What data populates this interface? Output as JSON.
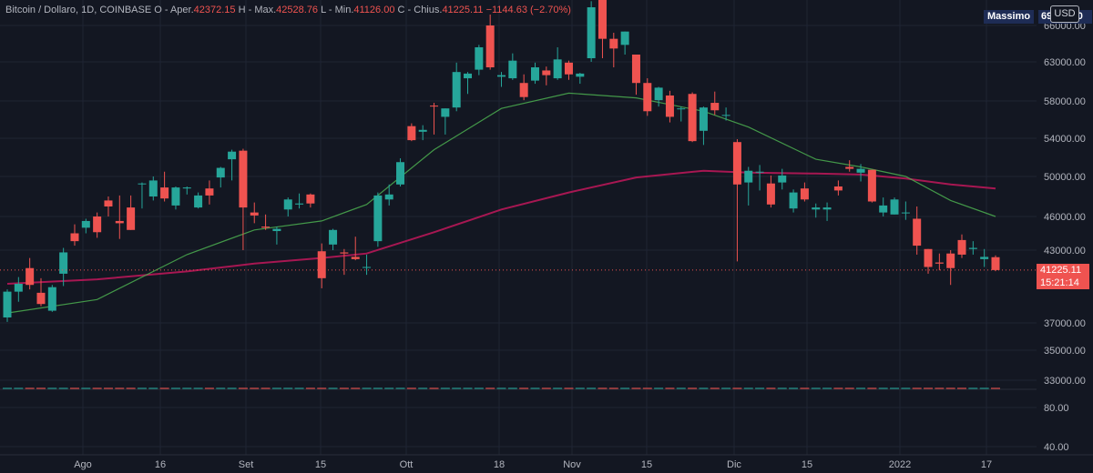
{
  "header": {
    "symbol": "Bitcoin / Dollaro, 1D, COINBASE",
    "open_label": "O - Aper.",
    "open": "42372.15",
    "high_label": "H - Max.",
    "high": "42528.76",
    "low_label": "L - Min.",
    "low": "41126.00",
    "close_label": "C - Chius.",
    "close": "41225.11",
    "change": "−1144.63 (−2.70%)"
  },
  "currency_button": "USD",
  "max_marker": {
    "label": "Massimo",
    "value": "69000.00"
  },
  "last_price": {
    "value": "41225.11",
    "countdown": "15:21:14"
  },
  "colors": {
    "background": "#131722",
    "up": "#26a69a",
    "down": "#ef5350",
    "ma_short": "#4caf50",
    "ma_long": "#c2185b"
  },
  "chart_data": {
    "type": "candlestick",
    "price_ticks": [
      "66000.00",
      "63000.00",
      "58000.00",
      "54000.00",
      "50000.00",
      "46000.00",
      "43000.00",
      "37000.00",
      "35000.00",
      "33000.00",
      "80.00",
      "40.00"
    ],
    "x_labels": [
      "Ago",
      "16",
      "Set",
      "15",
      "Ott",
      "18",
      "Nov",
      "15",
      "Dic",
      "15",
      "2022",
      "17"
    ],
    "candles": [
      {
        "date": "2021-07-27",
        "o": 37000,
        "h": 39500,
        "l": 36600,
        "c": 39300
      },
      {
        "date": "2021-07-29",
        "o": 39300,
        "h": 40600,
        "l": 38400,
        "c": 40000
      },
      {
        "date": "2021-07-31",
        "o": 41400,
        "h": 42300,
        "l": 39500,
        "c": 39900
      },
      {
        "date": "2021-08-02",
        "o": 39200,
        "h": 40500,
        "l": 38000,
        "c": 38200
      },
      {
        "date": "2021-08-04",
        "o": 37600,
        "h": 39900,
        "l": 37500,
        "c": 39700
      },
      {
        "date": "2021-08-06",
        "o": 40900,
        "h": 43200,
        "l": 39800,
        "c": 42800
      },
      {
        "date": "2021-08-08",
        "o": 44500,
        "h": 45300,
        "l": 43400,
        "c": 43800
      },
      {
        "date": "2021-08-10",
        "o": 45000,
        "h": 45800,
        "l": 44500,
        "c": 45600
      },
      {
        "date": "2021-08-12",
        "o": 46000,
        "h": 46400,
        "l": 44100,
        "c": 44600
      },
      {
        "date": "2021-08-14",
        "o": 47600,
        "h": 48000,
        "l": 46000,
        "c": 47000
      },
      {
        "date": "2021-08-16",
        "o": 45600,
        "h": 48100,
        "l": 44000,
        "c": 45400
      },
      {
        "date": "2021-08-18",
        "o": 46900,
        "h": 48100,
        "l": 44800,
        "c": 44800
      },
      {
        "date": "2021-08-20",
        "o": 49300,
        "h": 49400,
        "l": 46800,
        "c": 49300
      },
      {
        "date": "2021-08-22",
        "o": 48000,
        "h": 50000,
        "l": 47600,
        "c": 49600
      },
      {
        "date": "2021-08-24",
        "o": 48900,
        "h": 50500,
        "l": 47500,
        "c": 47800
      },
      {
        "date": "2021-08-26",
        "o": 47100,
        "h": 49000,
        "l": 46700,
        "c": 48900
      },
      {
        "date": "2021-08-28",
        "o": 48800,
        "h": 49000,
        "l": 48200,
        "c": 48900
      },
      {
        "date": "2021-08-30",
        "o": 46900,
        "h": 48400,
        "l": 46800,
        "c": 48100
      },
      {
        "date": "2021-09-01",
        "o": 48800,
        "h": 49600,
        "l": 47200,
        "c": 48100
      },
      {
        "date": "2021-09-03",
        "o": 49900,
        "h": 51000,
        "l": 48900,
        "c": 50900
      },
      {
        "date": "2021-09-05",
        "o": 51800,
        "h": 52800,
        "l": 49600,
        "c": 52600
      },
      {
        "date": "2021-09-07",
        "o": 52700,
        "h": 52900,
        "l": 43000,
        "c": 46900
      },
      {
        "date": "2021-09-09",
        "o": 46400,
        "h": 47400,
        "l": 45400,
        "c": 46100
      },
      {
        "date": "2021-09-11",
        "o": 45100,
        "h": 46200,
        "l": 44800,
        "c": 45000
      },
      {
        "date": "2021-09-13",
        "o": 44700,
        "h": 45100,
        "l": 43500,
        "c": 44900
      },
      {
        "date": "2021-09-15",
        "o": 46700,
        "h": 47900,
        "l": 46000,
        "c": 47700
      },
      {
        "date": "2021-09-17",
        "o": 47200,
        "h": 48300,
        "l": 46800,
        "c": 47300
      },
      {
        "date": "2021-09-19",
        "o": 48200,
        "h": 48300,
        "l": 46900,
        "c": 47300
      },
      {
        "date": "2021-09-21",
        "o": 42900,
        "h": 43600,
        "l": 39600,
        "c": 40500
      },
      {
        "date": "2021-09-23",
        "o": 43500,
        "h": 44900,
        "l": 43000,
        "c": 44800
      },
      {
        "date": "2021-09-25",
        "o": 42800,
        "h": 43100,
        "l": 40800,
        "c": 42700
      },
      {
        "date": "2021-09-27",
        "o": 42400,
        "h": 44200,
        "l": 42100,
        "c": 42200
      },
      {
        "date": "2021-09-29",
        "o": 41500,
        "h": 42600,
        "l": 40800,
        "c": 41500
      },
      {
        "date": "2021-10-01",
        "o": 43800,
        "h": 48400,
        "l": 43300,
        "c": 48100
      },
      {
        "date": "2021-10-03",
        "o": 47700,
        "h": 49200,
        "l": 47100,
        "c": 48200
      },
      {
        "date": "2021-10-05",
        "o": 49200,
        "h": 51900,
        "l": 49000,
        "c": 51500
      },
      {
        "date": "2021-10-07",
        "o": 55300,
        "h": 55600,
        "l": 53700,
        "c": 53800
      },
      {
        "date": "2021-10-09",
        "o": 54700,
        "h": 55400,
        "l": 53800,
        "c": 54900
      },
      {
        "date": "2021-10-11",
        "o": 57500,
        "h": 57800,
        "l": 54400,
        "c": 57400
      },
      {
        "date": "2021-10-13",
        "o": 56300,
        "h": 57200,
        "l": 54400,
        "c": 57200
      },
      {
        "date": "2021-10-15",
        "o": 57300,
        "h": 62900,
        "l": 56900,
        "c": 61700
      },
      {
        "date": "2021-10-17",
        "o": 60900,
        "h": 61700,
        "l": 58900,
        "c": 61500
      },
      {
        "date": "2021-10-19",
        "o": 62000,
        "h": 64400,
        "l": 61300,
        "c": 64200
      },
      {
        "date": "2021-10-21",
        "o": 66000,
        "h": 66900,
        "l": 62000,
        "c": 62300
      },
      {
        "date": "2021-10-23",
        "o": 61100,
        "h": 61700,
        "l": 59800,
        "c": 61300
      },
      {
        "date": "2021-10-25",
        "o": 60900,
        "h": 63700,
        "l": 60700,
        "c": 63100
      },
      {
        "date": "2021-10-27",
        "o": 60300,
        "h": 61400,
        "l": 58100,
        "c": 58500
      },
      {
        "date": "2021-10-29",
        "o": 60600,
        "h": 62900,
        "l": 60200,
        "c": 62300
      },
      {
        "date": "2021-10-31",
        "o": 61900,
        "h": 62400,
        "l": 60000,
        "c": 61300
      },
      {
        "date": "2021-11-02",
        "o": 60900,
        "h": 64200,
        "l": 60700,
        "c": 63200
      },
      {
        "date": "2021-11-04",
        "o": 62900,
        "h": 63100,
        "l": 60700,
        "c": 61400
      },
      {
        "date": "2021-11-06",
        "o": 61100,
        "h": 61600,
        "l": 60200,
        "c": 61500
      },
      {
        "date": "2021-11-08",
        "o": 63300,
        "h": 68000,
        "l": 63000,
        "c": 67500
      },
      {
        "date": "2021-11-10",
        "o": 68600,
        "h": 69000,
        "l": 63300,
        "c": 64900
      },
      {
        "date": "2021-11-12",
        "o": 64900,
        "h": 65400,
        "l": 62300,
        "c": 64100
      },
      {
        "date": "2021-11-14",
        "o": 64400,
        "h": 65500,
        "l": 63600,
        "c": 65500
      },
      {
        "date": "2021-11-16",
        "o": 63600,
        "h": 63600,
        "l": 58800,
        "c": 60300
      },
      {
        "date": "2021-11-18",
        "o": 60300,
        "h": 60900,
        "l": 56400,
        "c": 56900
      },
      {
        "date": "2021-11-20",
        "o": 58100,
        "h": 59800,
        "l": 57400,
        "c": 59700
      },
      {
        "date": "2021-11-22",
        "o": 58700,
        "h": 59300,
        "l": 55700,
        "c": 56300
      },
      {
        "date": "2021-11-24",
        "o": 57100,
        "h": 57400,
        "l": 55800,
        "c": 57200
      },
      {
        "date": "2021-11-26",
        "o": 58900,
        "h": 59100,
        "l": 53600,
        "c": 53700
      },
      {
        "date": "2021-11-28",
        "o": 54800,
        "h": 57400,
        "l": 53300,
        "c": 57300
      },
      {
        "date": "2021-11-30",
        "o": 57800,
        "h": 59200,
        "l": 56500,
        "c": 57000
      },
      {
        "date": "2021-12-02",
        "o": 56500,
        "h": 57300,
        "l": 55900,
        "c": 56500
      },
      {
        "date": "2021-12-04",
        "o": 53600,
        "h": 53900,
        "l": 42000,
        "c": 49200
      },
      {
        "date": "2021-12-06",
        "o": 49400,
        "h": 51000,
        "l": 47100,
        "c": 50600
      },
      {
        "date": "2021-12-08",
        "o": 50500,
        "h": 51200,
        "l": 48600,
        "c": 50500
      },
      {
        "date": "2021-12-10",
        "o": 49300,
        "h": 50100,
        "l": 46900,
        "c": 47200
      },
      {
        "date": "2021-12-12",
        "o": 49400,
        "h": 50800,
        "l": 48700,
        "c": 50100
      },
      {
        "date": "2021-12-14",
        "o": 46800,
        "h": 48700,
        "l": 46400,
        "c": 48400
      },
      {
        "date": "2021-12-16",
        "o": 48800,
        "h": 49400,
        "l": 47500,
        "c": 47700
      },
      {
        "date": "2021-12-18",
        "o": 46700,
        "h": 47300,
        "l": 45900,
        "c": 46900
      },
      {
        "date": "2021-12-20",
        "o": 46700,
        "h": 47400,
        "l": 45600,
        "c": 46900
      },
      {
        "date": "2021-12-22",
        "o": 49000,
        "h": 49600,
        "l": 48100,
        "c": 48600
      },
      {
        "date": "2021-12-24",
        "o": 51000,
        "h": 51700,
        "l": 50500,
        "c": 50800
      },
      {
        "date": "2021-12-26",
        "o": 50400,
        "h": 51300,
        "l": 49500,
        "c": 50800
      },
      {
        "date": "2021-12-28",
        "o": 50700,
        "h": 50700,
        "l": 47400,
        "c": 47500
      },
      {
        "date": "2021-12-30",
        "o": 46400,
        "h": 47900,
        "l": 46000,
        "c": 47100
      },
      {
        "date": "2022-01-01",
        "o": 46200,
        "h": 47900,
        "l": 46200,
        "c": 47700
      },
      {
        "date": "2022-01-03",
        "o": 46400,
        "h": 47500,
        "l": 45700,
        "c": 46400
      },
      {
        "date": "2022-01-05",
        "o": 45800,
        "h": 47000,
        "l": 42600,
        "c": 43400
      },
      {
        "date": "2022-01-07",
        "o": 43100,
        "h": 43100,
        "l": 40900,
        "c": 41500
      },
      {
        "date": "2022-01-09",
        "o": 41900,
        "h": 42700,
        "l": 41200,
        "c": 41800
      },
      {
        "date": "2022-01-11",
        "o": 42700,
        "h": 43000,
        "l": 39900,
        "c": 41400
      },
      {
        "date": "2022-01-13",
        "o": 43900,
        "h": 44400,
        "l": 42300,
        "c": 42600
      },
      {
        "date": "2022-01-15",
        "o": 43100,
        "h": 43800,
        "l": 42600,
        "c": 43200
      },
      {
        "date": "2022-01-17",
        "o": 42200,
        "h": 43100,
        "l": 41500,
        "c": 42400
      },
      {
        "date": "2022-01-18",
        "o": 42372.15,
        "h": 42528.76,
        "l": 41126.0,
        "c": 41225.11
      }
    ],
    "ma_short": [
      [
        0,
        37400
      ],
      [
        8,
        38600
      ],
      [
        16,
        42600
      ],
      [
        22,
        44800
      ],
      [
        28,
        45600
      ],
      [
        32,
        47200
      ],
      [
        38,
        52800
      ],
      [
        44,
        57200
      ],
      [
        50,
        59000
      ],
      [
        56,
        58400
      ],
      [
        62,
        56900
      ],
      [
        66,
        55200
      ],
      [
        72,
        51800
      ],
      [
        76,
        51000
      ],
      [
        80,
        50000
      ],
      [
        84,
        47600
      ],
      [
        88,
        46000
      ]
    ],
    "ma_long": [
      [
        0,
        40000
      ],
      [
        8,
        40400
      ],
      [
        16,
        41100
      ],
      [
        22,
        41800
      ],
      [
        28,
        42300
      ],
      [
        32,
        42700
      ],
      [
        38,
        44600
      ],
      [
        44,
        46700
      ],
      [
        50,
        48400
      ],
      [
        56,
        49900
      ],
      [
        62,
        50600
      ],
      [
        66,
        50400
      ],
      [
        72,
        50300
      ],
      [
        76,
        50200
      ],
      [
        80,
        49800
      ],
      [
        84,
        49200
      ],
      [
        88,
        48800
      ]
    ],
    "volume": [
      34.8,
      35.1,
      36.5,
      34.2,
      35.0,
      37.4,
      36.7,
      35.9,
      35.3,
      35.8,
      36.2,
      35.1,
      35.9,
      34.9,
      35.6,
      34.8,
      35.2,
      36.1,
      35.0,
      35.8,
      36.9,
      37.6,
      35.9,
      35.3,
      34.5,
      35.4,
      34.9,
      35.6,
      37.1,
      36.3,
      35.2,
      34.8,
      35.6,
      36.4,
      35.0,
      35.8,
      37.3,
      36.0,
      35.5,
      35.1,
      36.8,
      35.7,
      37.0,
      36.1,
      35.4,
      35.9,
      36.6,
      35.2,
      34.9,
      35.3,
      35.0,
      34.7,
      36.2,
      36.9,
      35.6,
      35.1,
      36.7,
      35.5,
      35.9,
      35.0,
      35.4,
      34.8,
      35.7,
      36.0,
      35.3,
      38.6,
      36.8,
      36.2,
      35.5,
      35.9,
      35.1,
      35.6,
      34.9,
      34.6,
      35.2,
      35.8,
      35.4,
      36.5,
      35.7,
      35.3,
      36.0,
      36.9,
      36.2,
      36.6,
      35.4,
      35.8,
      35.2,
      35.0,
      33.8
    ],
    "volume_axis": {
      "min": 33000,
      "max": 37000
    },
    "price_axis_ticks": [
      66000,
      63000,
      58000,
      54000,
      50000,
      46000,
      43000
    ]
  }
}
